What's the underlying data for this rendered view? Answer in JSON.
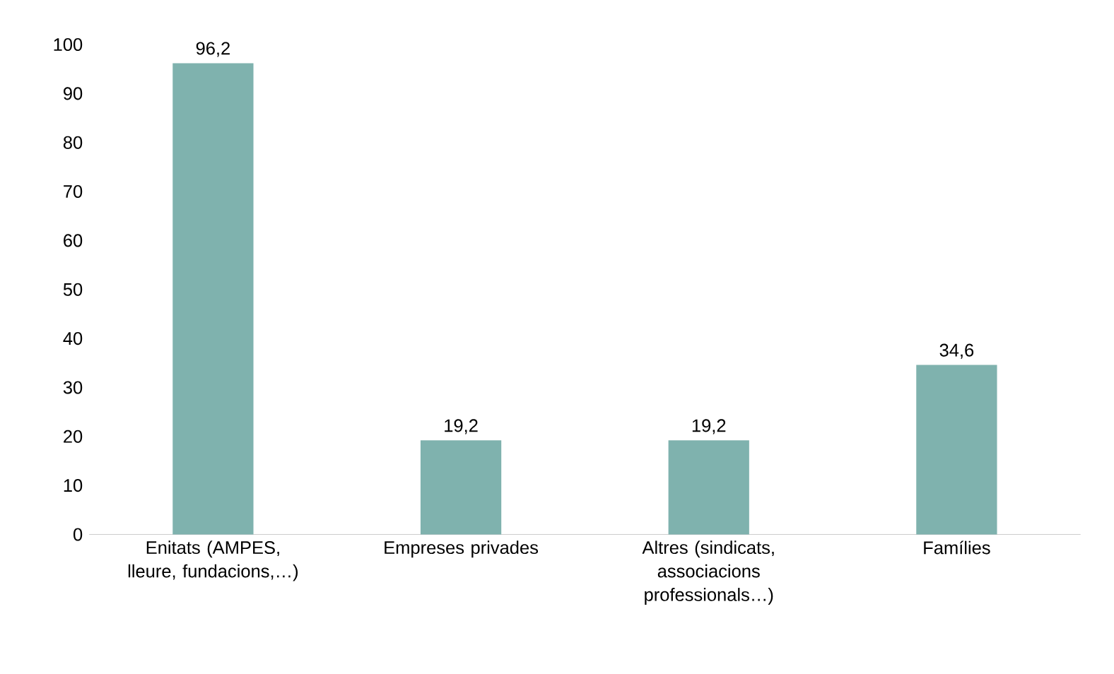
{
  "chart_data": {
    "type": "bar",
    "categories": [
      "Enitats (AMPES, lleure, fundacions,…)",
      "Empreses privades",
      "Altres (sindicats, associacions professionals…)",
      "Famílies"
    ],
    "values": [
      96.2,
      19.2,
      19.2,
      34.6
    ],
    "value_labels": [
      "96,2",
      "19,2",
      "19,2",
      "34,6"
    ],
    "color": "#7fb2ae",
    "ylim": [
      0,
      100
    ],
    "yticks": [
      0,
      10,
      20,
      30,
      40,
      50,
      60,
      70,
      80,
      90,
      100
    ]
  }
}
